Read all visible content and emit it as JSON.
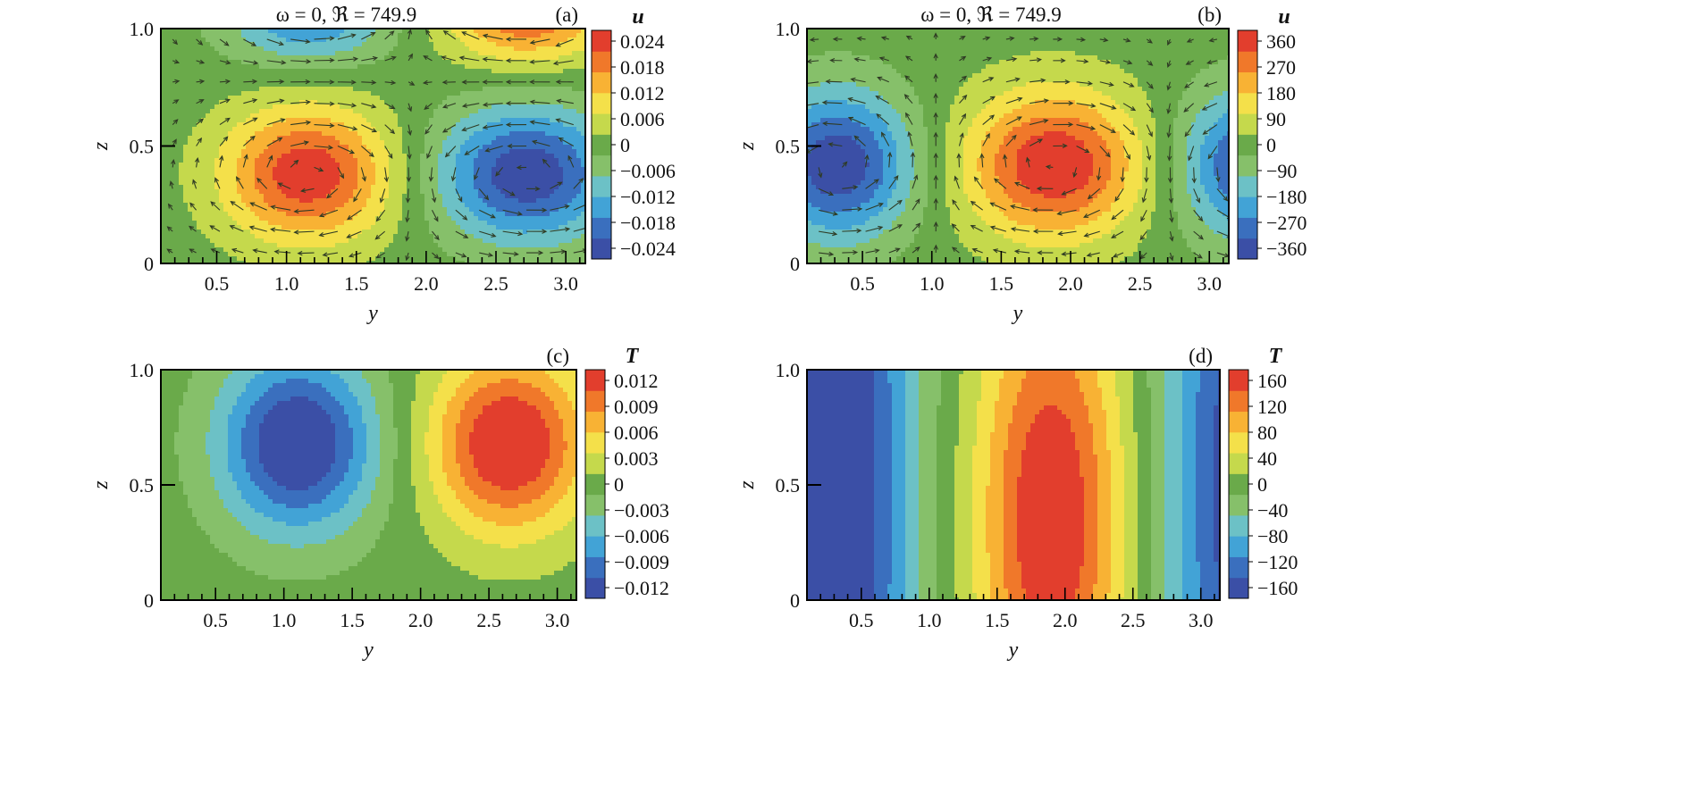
{
  "chart_data": [
    {
      "panel_label": "(a)",
      "title": "ω = 0, ℜ = 749.9",
      "type": "heatmap",
      "variable": "u",
      "xlabel": "y",
      "ylabel": "z",
      "xlim": [
        0.1,
        3.14
      ],
      "ylim": [
        0,
        1
      ],
      "xticks": [
        "0.5",
        "1.0",
        "1.5",
        "2.0",
        "2.5",
        "3.0"
      ],
      "yticks": [
        "0",
        "0.5",
        "1.0"
      ],
      "colorbar_ticks": [
        "0.024",
        "0.018",
        "0.012",
        "0.006",
        "0",
        "−0.006",
        "−0.012",
        "−0.018",
        "−0.024"
      ],
      "vmin": -0.028,
      "vmax": 0.028,
      "vectors": true,
      "extrema": [
        {
          "y": 1.15,
          "z": 0.38,
          "value": 0.027,
          "sy": 0.42,
          "sz": 0.2
        },
        {
          "y": 2.72,
          "z": 0.38,
          "value": -0.027,
          "sy": 0.45,
          "sz": 0.2
        },
        {
          "y": 1.15,
          "z": 1.05,
          "value": -0.018,
          "sy": 0.4,
          "sz": 0.14
        },
        {
          "y": 2.72,
          "z": 1.05,
          "value": 0.022,
          "sy": 0.4,
          "sz": 0.14
        }
      ]
    },
    {
      "panel_label": "(b)",
      "title": "ω = 0, ℜ = 749.9",
      "type": "heatmap",
      "variable": "u",
      "xlabel": "y",
      "ylabel": "z",
      "xlim": [
        0.1,
        3.14
      ],
      "ylim": [
        0,
        1
      ],
      "xticks": [
        "0.5",
        "1.0",
        "1.5",
        "2.0",
        "2.5",
        "3.0"
      ],
      "yticks": [
        "0",
        "0.5",
        "1.0"
      ],
      "colorbar_ticks": [
        "360",
        "270",
        "180",
        "90",
        "0",
        "−90",
        "−180",
        "−270",
        "−360"
      ],
      "vmin": -400,
      "vmax": 400,
      "vectors": true,
      "extrema": [
        {
          "y": 1.88,
          "z": 0.42,
          "value": 400,
          "sy": 0.45,
          "sz": 0.22
        },
        {
          "y": 0.32,
          "z": 0.42,
          "value": -390,
          "sy": 0.38,
          "sz": 0.22
        },
        {
          "y": 3.38,
          "z": 0.42,
          "value": -390,
          "sy": 0.4,
          "sz": 0.22
        }
      ]
    },
    {
      "panel_label": "(c)",
      "type": "heatmap",
      "variable": "T",
      "xlabel": "y",
      "ylabel": "z",
      "xlim": [
        0.1,
        3.14
      ],
      "ylim": [
        0,
        1
      ],
      "xticks": [
        "0.5",
        "1.0",
        "1.5",
        "2.0",
        "2.5",
        "3.0"
      ],
      "yticks": [
        "0",
        "0.5",
        "1.0"
      ],
      "colorbar_ticks": [
        "0.012",
        "0.009",
        "0.006",
        "0.003",
        "0",
        "−0.003",
        "−0.006",
        "−0.009",
        "−0.012"
      ],
      "vmin": -0.0135,
      "vmax": 0.0135,
      "vectors": false,
      "extrema": [
        {
          "y": 1.1,
          "z": 0.68,
          "value": -0.0145,
          "sy": 0.4,
          "sz": 0.27
        },
        {
          "y": 2.65,
          "z": 0.68,
          "value": 0.0145,
          "sy": 0.4,
          "sz": 0.27
        }
      ]
    },
    {
      "panel_label": "(d)",
      "type": "heatmap",
      "variable": "T",
      "xlabel": "y",
      "ylabel": "z",
      "xlim": [
        0.1,
        3.14
      ],
      "ylim": [
        0,
        1
      ],
      "xticks": [
        "0.5",
        "1.0",
        "1.5",
        "2.0",
        "2.5",
        "3.0"
      ],
      "yticks": [
        "0",
        "0.5",
        "1.0"
      ],
      "colorbar_ticks": [
        "160",
        "120",
        "80",
        "40",
        "0",
        "−40",
        "−80",
        "−120",
        "−160"
      ],
      "vmin": -180,
      "vmax": 180,
      "vectors": false,
      "extrema": [
        {
          "y": 1.9,
          "z": 0.35,
          "value": 185,
          "sy": 0.38,
          "sz": 0.75
        },
        {
          "y": 0.35,
          "z": 0.5,
          "value": -185,
          "sy": 0.38,
          "sz": 2.0
        },
        {
          "y": 3.4,
          "z": 0.5,
          "value": -185,
          "sy": 0.45,
          "sz": 2.0
        }
      ]
    }
  ],
  "colors": {
    "colormap": [
      "#3b4fa6",
      "#3a6fbe",
      "#42a3d6",
      "#6cc1c6",
      "#86c06a",
      "#6aaa4a",
      "#c5d94c",
      "#f4e04a",
      "#f8b234",
      "#f0782a",
      "#e23e2d"
    ],
    "neutral": "#6aaa4a",
    "arrow": "#2f3b24",
    "frame": "#000000"
  }
}
